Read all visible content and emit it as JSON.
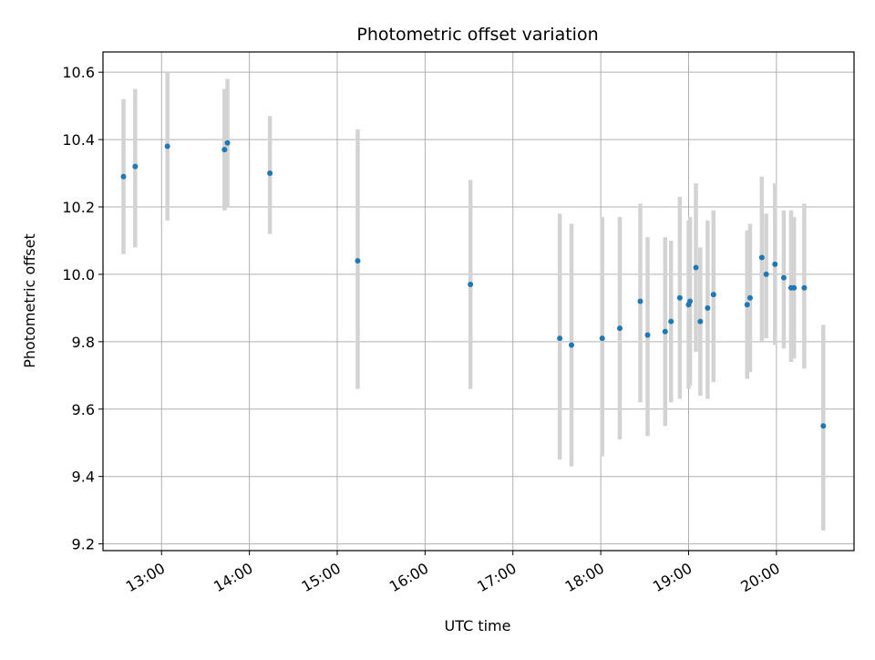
{
  "chart_data": {
    "type": "scatter",
    "title": "Photometric offset variation",
    "xlabel": "UTC time",
    "ylabel": "Photometric offset",
    "x_unit": "UTC time (HH:MM)",
    "xlim": [
      "12:20",
      "20:53"
    ],
    "ylim": [
      9.18,
      10.66
    ],
    "x_ticks": [
      "13:00",
      "14:00",
      "15:00",
      "16:00",
      "17:00",
      "18:00",
      "19:00",
      "20:00"
    ],
    "y_ticks": [
      9.2,
      9.4,
      9.6,
      9.8,
      10.0,
      10.2,
      10.4,
      10.6
    ],
    "y_tick_labels": [
      "9.2",
      "9.4",
      "9.6",
      "9.8",
      "10.0",
      "10.2",
      "10.4",
      "10.6"
    ],
    "grid": true,
    "marker_color": "#1f77b4",
    "errorbar_color": "#d3d3d3",
    "series": [
      {
        "points": [
          {
            "x": "12:34",
            "y": 10.29,
            "y_low": 10.06,
            "y_high": 10.52
          },
          {
            "x": "12:42",
            "y": 10.32,
            "y_low": 10.08,
            "y_high": 10.55
          },
          {
            "x": "13:04",
            "y": 10.38,
            "y_low": 10.16,
            "y_high": 10.6
          },
          {
            "x": "13:43",
            "y": 10.37,
            "y_low": 10.19,
            "y_high": 10.55
          },
          {
            "x": "13:45",
            "y": 10.39,
            "y_low": 10.2,
            "y_high": 10.58
          },
          {
            "x": "14:14",
            "y": 10.3,
            "y_low": 10.12,
            "y_high": 10.47
          },
          {
            "x": "15:14",
            "y": 10.04,
            "y_low": 9.66,
            "y_high": 10.43
          },
          {
            "x": "16:31",
            "y": 9.97,
            "y_low": 9.66,
            "y_high": 10.28
          },
          {
            "x": "17:32",
            "y": 9.81,
            "y_low": 9.45,
            "y_high": 10.18
          },
          {
            "x": "17:40",
            "y": 9.79,
            "y_low": 9.43,
            "y_high": 10.15
          },
          {
            "x": "18:01",
            "y": 9.81,
            "y_low": 9.46,
            "y_high": 10.17
          },
          {
            "x": "18:13",
            "y": 9.84,
            "y_low": 9.51,
            "y_high": 10.17
          },
          {
            "x": "18:27",
            "y": 9.92,
            "y_low": 9.62,
            "y_high": 10.21
          },
          {
            "x": "18:32",
            "y": 9.82,
            "y_low": 9.52,
            "y_high": 10.11
          },
          {
            "x": "18:44",
            "y": 9.83,
            "y_low": 9.55,
            "y_high": 10.11
          },
          {
            "x": "18:48",
            "y": 9.86,
            "y_low": 9.62,
            "y_high": 10.1
          },
          {
            "x": "18:54",
            "y": 9.93,
            "y_low": 9.63,
            "y_high": 10.23
          },
          {
            "x": "19:00",
            "y": 9.91,
            "y_low": 9.66,
            "y_high": 10.16
          },
          {
            "x": "19:01",
            "y": 9.92,
            "y_low": 9.67,
            "y_high": 10.17
          },
          {
            "x": "19:05",
            "y": 10.02,
            "y_low": 9.77,
            "y_high": 10.27
          },
          {
            "x": "19:08",
            "y": 9.86,
            "y_low": 9.64,
            "y_high": 10.08
          },
          {
            "x": "19:13",
            "y": 9.9,
            "y_low": 9.63,
            "y_high": 10.16
          },
          {
            "x": "19:17",
            "y": 9.94,
            "y_low": 9.68,
            "y_high": 10.19
          },
          {
            "x": "19:40",
            "y": 9.91,
            "y_low": 9.69,
            "y_high": 10.13
          },
          {
            "x": "19:42",
            "y": 9.93,
            "y_low": 9.71,
            "y_high": 10.15
          },
          {
            "x": "19:50",
            "y": 10.05,
            "y_low": 9.8,
            "y_high": 10.29
          },
          {
            "x": "19:53",
            "y": 10.0,
            "y_low": 9.81,
            "y_high": 10.18
          },
          {
            "x": "19:59",
            "y": 10.03,
            "y_low": 9.79,
            "y_high": 10.27
          },
          {
            "x": "20:05",
            "y": 9.99,
            "y_low": 9.78,
            "y_high": 10.19
          },
          {
            "x": "20:10",
            "y": 9.96,
            "y_low": 9.74,
            "y_high": 10.19
          },
          {
            "x": "20:12",
            "y": 9.96,
            "y_low": 9.75,
            "y_high": 10.17
          },
          {
            "x": "20:19",
            "y": 9.96,
            "y_low": 9.72,
            "y_high": 10.21
          },
          {
            "x": "20:32",
            "y": 9.55,
            "y_low": 9.24,
            "y_high": 9.85
          }
        ]
      }
    ]
  }
}
